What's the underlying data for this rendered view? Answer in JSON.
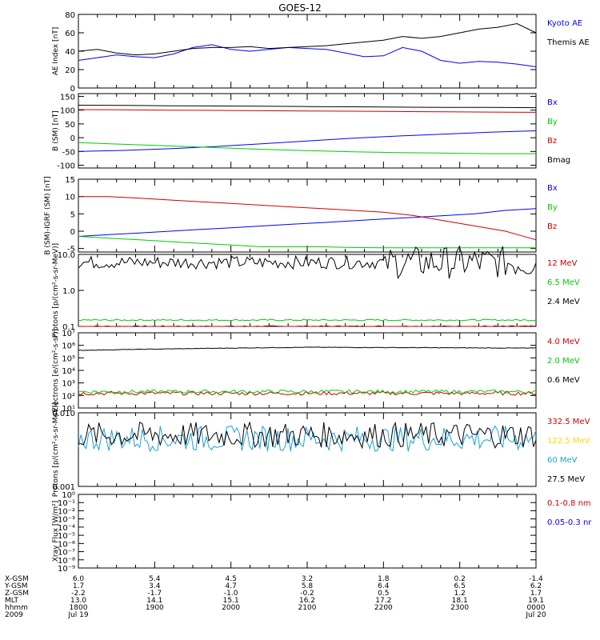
{
  "title": "GOES-12",
  "colors": {
    "black": "#000000",
    "blue": "#0000ff",
    "red": "#cc0000",
    "green": "#00cc00",
    "yellow": "#ffd700",
    "cyan": "#1e9fd6"
  },
  "chart_data": [
    {
      "type": "line",
      "ylabel": "AE Index [nT]",
      "ylim": [
        0,
        80
      ],
      "yticks": [
        "0",
        "20",
        "40",
        "60",
        "80"
      ],
      "series": [
        {
          "name": "Kyoto AE",
          "color": "blue",
          "values": [
            30,
            33,
            36,
            34,
            33,
            37,
            44,
            47,
            42,
            40,
            42,
            44,
            43,
            42,
            38,
            34,
            35,
            44,
            40,
            30,
            27,
            29,
            28,
            26,
            23
          ]
        },
        {
          "name": "Themis AE",
          "color": "black",
          "values": [
            40,
            42,
            38,
            36,
            37,
            40,
            43,
            44,
            44,
            45,
            43,
            44,
            45,
            46,
            48,
            50,
            52,
            56,
            54,
            56,
            60,
            64,
            66,
            70,
            60
          ]
        }
      ]
    },
    {
      "type": "line",
      "ylabel": "B (SM) [nT]",
      "ylim": [
        -110,
        160
      ],
      "yticks": [
        "-100",
        "-50",
        "0",
        "50",
        "100",
        "150"
      ],
      "series": [
        {
          "name": "Bx",
          "color": "blue",
          "values": [
            -50,
            -46,
            -40,
            -32,
            -22,
            -12,
            -2,
            6,
            13,
            20,
            25
          ]
        },
        {
          "name": "By",
          "color": "green",
          "values": [
            -18,
            -24,
            -30,
            -36,
            -42,
            -47,
            -51,
            -54,
            -56,
            -58,
            -58
          ]
        },
        {
          "name": "Bz",
          "color": "red",
          "values": [
            102,
            101,
            100,
            99,
            98,
            97,
            96,
            95,
            94,
            93,
            92
          ]
        },
        {
          "name": "Bmag",
          "color": "black",
          "values": [
            118,
            117,
            116,
            115,
            114,
            113,
            112,
            111,
            110,
            110,
            109
          ]
        }
      ]
    },
    {
      "type": "line",
      "ylabel": "B (SM)-IGRF (SM) [nT]",
      "ylim": [
        -6,
        15
      ],
      "yticks": [
        "-5",
        "0",
        "5",
        "10",
        "15"
      ],
      "series": [
        {
          "name": "Bx",
          "color": "blue",
          "values": [
            -1.5,
            -1,
            -0.5,
            0,
            0.5,
            1,
            1.5,
            2,
            2.5,
            3,
            3.5,
            4,
            4.5,
            5,
            6,
            6.5
          ]
        },
        {
          "name": "By",
          "color": "green",
          "values": [
            -1.5,
            -2,
            -2.5,
            -3,
            -3.5,
            -4,
            -4.5,
            -4.5,
            -4.5,
            -4.7,
            -4.8,
            -4.8,
            -4.8,
            -4.8,
            -4.8,
            -4.8
          ]
        },
        {
          "name": "Bz",
          "color": "red",
          "values": [
            10,
            10,
            9.5,
            9,
            8.5,
            8,
            7.5,
            7,
            6.5,
            6,
            5.5,
            4.5,
            3,
            1.5,
            0,
            -2.5
          ]
        }
      ]
    },
    {
      "type": "line",
      "ylabel": "Protons [p/(cm²-s-sr-MeV)]",
      "scale": "log",
      "ylim": [
        0.1,
        10
      ],
      "yticks": [
        "0.1",
        "1.0",
        "10.0"
      ],
      "series": [
        {
          "name": "12 MeV",
          "color": "red",
          "values": [
            0.1
          ]
        },
        {
          "name": "6.5 MeV",
          "color": "green",
          "values": [
            0.15
          ]
        },
        {
          "name": "2.4 MeV",
          "color": "black",
          "values": [
            6
          ]
        }
      ]
    },
    {
      "type": "line",
      "ylabel": "Electrons [e/(cm²-s-sr)]",
      "scale": "log",
      "ylim": [
        10,
        10000000
      ],
      "yticks": [
        "10¹",
        "10²",
        "10³",
        "10⁴",
        "10⁵",
        "10⁶",
        "10⁷"
      ],
      "series": [
        {
          "name": "4.0 MeV",
          "color": "red",
          "values": [
            150
          ]
        },
        {
          "name": "2.0 MeV",
          "color": "green",
          "values": [
            200
          ]
        },
        {
          "name": "0.6 MeV",
          "color": "black",
          "values": [
            400000,
            700000,
            600000
          ]
        }
      ]
    },
    {
      "type": "line",
      "ylabel": "Protons [p/(cm²-s-sr-MeV)]",
      "scale": "log",
      "ylim": [
        0.001,
        0.1
      ],
      "yticks": [
        "0.001",
        "0.010"
      ],
      "series": [
        {
          "name": "332.5 MeV",
          "color": "red",
          "values": []
        },
        {
          "name": "122.5 MeV",
          "color": "yellow",
          "values": []
        },
        {
          "name": "60 MeV",
          "color": "cyan",
          "values": [
            0.02
          ]
        },
        {
          "name": "27.5 MeV",
          "color": "black",
          "values": [
            0.025
          ]
        }
      ]
    },
    {
      "type": "line",
      "ylabel": "Xray Flux [W/m²]",
      "scale": "log",
      "ylim": [
        1e-09,
        1
      ],
      "yticks": [
        "10⁻⁹",
        "10⁻⁸",
        "10⁻⁷",
        "10⁻⁶",
        "10⁻⁵",
        "10⁻⁴",
        "10⁻³",
        "10⁻²",
        "10⁻¹",
        "10⁰"
      ],
      "series": [
        {
          "name": "0.1-0.8 nm",
          "color": "red",
          "values": []
        },
        {
          "name": "0.05-0.3 nr",
          "color": "blue",
          "values": []
        }
      ]
    }
  ],
  "axis_table": {
    "labels": [
      "X-GSM",
      "Y-GSM",
      "Z-GSM",
      "MLT",
      "hhmm",
      "2009"
    ],
    "columns": [
      [
        "6.0",
        "1.7",
        "-2.2",
        "13.0",
        "1800",
        "Jul 19"
      ],
      [
        "5.4",
        "3.4",
        "-1.7",
        "14.1",
        "1900",
        ""
      ],
      [
        "4.5",
        "4.7",
        "-1.0",
        "15.1",
        "2000",
        ""
      ],
      [
        "3.2",
        "5.8",
        "-0.2",
        "16.2",
        "2100",
        ""
      ],
      [
        "1.8",
        "6.4",
        "0.5",
        "17.2",
        "2200",
        ""
      ],
      [
        "0.2",
        "6.5",
        "1.2",
        "18.1",
        "2300",
        ""
      ],
      [
        "-1.4",
        "6.2",
        "1.7",
        "19.1",
        "0000",
        "Jul 20"
      ]
    ]
  }
}
